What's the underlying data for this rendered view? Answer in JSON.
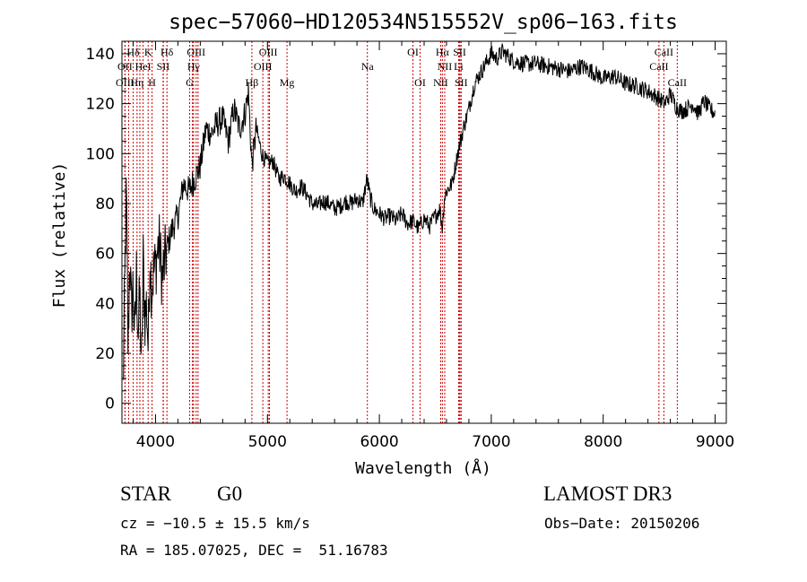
{
  "chart_data": {
    "type": "line",
    "title": "spec−57060−HD120534N515552V_sp06−163.fits",
    "xlabel": "Wavelength (Å)",
    "ylabel": "Flux (relative)",
    "xlim": [
      3700,
      9100
    ],
    "ylim": [
      -8,
      145
    ],
    "xticks": [
      4000,
      5000,
      6000,
      7000,
      8000,
      9000
    ],
    "yticks": [
      0,
      20,
      40,
      60,
      80,
      100,
      120,
      140
    ],
    "series": [
      {
        "name": "flux",
        "x": [
          3710,
          3725,
          3740,
          3755,
          3770,
          3785,
          3800,
          3815,
          3830,
          3845,
          3860,
          3875,
          3890,
          3905,
          3920,
          3935,
          3950,
          3965,
          3980,
          4000,
          4030,
          4060,
          4100,
          4150,
          4200,
          4250,
          4300,
          4350,
          4400,
          4450,
          4500,
          4550,
          4600,
          4650,
          4700,
          4750,
          4800,
          4830,
          4861,
          4900,
          4950,
          5000,
          5050,
          5100,
          5150,
          5200,
          5250,
          5300,
          5350,
          5400,
          5450,
          5500,
          5550,
          5600,
          5650,
          5700,
          5750,
          5800,
          5850,
          5890,
          5920,
          5950,
          6000,
          6050,
          6100,
          6150,
          6200,
          6250,
          6300,
          6350,
          6400,
          6450,
          6500,
          6540,
          6563,
          6580,
          6600,
          6650,
          6700,
          6750,
          6800,
          6850,
          6900,
          6950,
          7000,
          7050,
          7100,
          7150,
          7200,
          7300,
          7400,
          7500,
          7600,
          7700,
          7800,
          7900,
          8000,
          8100,
          8200,
          8300,
          8400,
          8500,
          8550,
          8600,
          8650,
          8700,
          8750,
          8800,
          8850,
          8900,
          8950,
          9000
        ],
        "values": [
          5,
          45,
          85,
          20,
          60,
          35,
          48,
          25,
          52,
          28,
          44,
          10,
          58,
          34,
          40,
          22,
          60,
          45,
          52,
          55,
          65,
          50,
          62,
          70,
          75,
          88,
          85,
          90,
          95,
          110,
          108,
          112,
          114,
          105,
          118,
          110,
          116,
          125,
          95,
          110,
          100,
          96,
          97,
          90,
          91,
          88,
          85,
          87,
          84,
          80,
          79,
          81,
          80,
          78,
          79,
          81,
          80,
          82,
          80,
          90,
          82,
          78,
          76,
          74,
          75,
          73,
          76,
          72,
          73,
          70,
          74,
          71,
          75,
          78,
          70,
          82,
          85,
          88,
          100,
          110,
          118,
          128,
          132,
          136,
          140,
          138,
          141,
          139,
          137,
          136,
          136,
          135,
          134,
          133,
          135,
          133,
          130,
          131,
          128,
          127,
          125,
          122,
          120,
          124,
          119,
          117,
          118,
          120,
          116,
          121,
          118,
          116
        ]
      }
    ],
    "lines_top": [
      {
        "label": "Hδ",
        "x": 3800,
        "row": 0
      },
      {
        "label": "K",
        "x": 3934,
        "row": 0
      },
      {
        "label": "Hδ",
        "x": 4102,
        "row": 0
      },
      {
        "label": "OIII",
        "x": 4363,
        "row": 0
      },
      {
        "label": "OIII",
        "x": 5007,
        "row": 0
      },
      {
        "label": "OI",
        "x": 6300,
        "row": 0
      },
      {
        "label": "Hα",
        "x": 6563,
        "row": 0
      },
      {
        "label": "SII",
        "x": 6717,
        "row": 0
      },
      {
        "label": "CaII",
        "x": 8542,
        "row": 0
      },
      {
        "label": "OII",
        "x": 3727,
        "row": 1
      },
      {
        "label": "HeI",
        "x": 3889,
        "row": 1
      },
      {
        "label": "SII",
        "x": 4068,
        "row": 1
      },
      {
        "label": "Hγ",
        "x": 4340,
        "row": 1
      },
      {
        "label": "OIII",
        "x": 4959,
        "row": 1
      },
      {
        "label": "Na",
        "x": 5893,
        "row": 1
      },
      {
        "label": "NII",
        "x": 6584,
        "row": 1
      },
      {
        "label": "Li",
        "x": 6708,
        "row": 1
      },
      {
        "label": "CaII",
        "x": 8498,
        "row": 1
      },
      {
        "label": "OIII",
        "x": 3727,
        "row": 2
      },
      {
        "label": "Hη",
        "x": 3835,
        "row": 2
      },
      {
        "label": "H",
        "x": 3969,
        "row": 2
      },
      {
        "label": "G",
        "x": 4305,
        "row": 2
      },
      {
        "label": "Hβ",
        "x": 4861,
        "row": 2
      },
      {
        "label": "Mg",
        "x": 5175,
        "row": 2
      },
      {
        "label": "OI",
        "x": 6364,
        "row": 2
      },
      {
        "label": "NII",
        "x": 6548,
        "row": 2
      },
      {
        "label": "SII",
        "x": 6731,
        "row": 2
      },
      {
        "label": "CaII",
        "x": 8662,
        "row": 2
      }
    ],
    "extra_line_x": [
      3760,
      3860,
      4070,
      4330,
      4380,
      5018,
      6720
    ]
  },
  "info": {
    "object_type": "STAR",
    "subclass": "G0",
    "survey": "LAMOST DR3",
    "cz": "cz = −10.5 ± 15.5 km/s",
    "obs_date": "Obs−Date: 20150206",
    "coords": "RA = 185.07025, DEC =  51.16783"
  }
}
